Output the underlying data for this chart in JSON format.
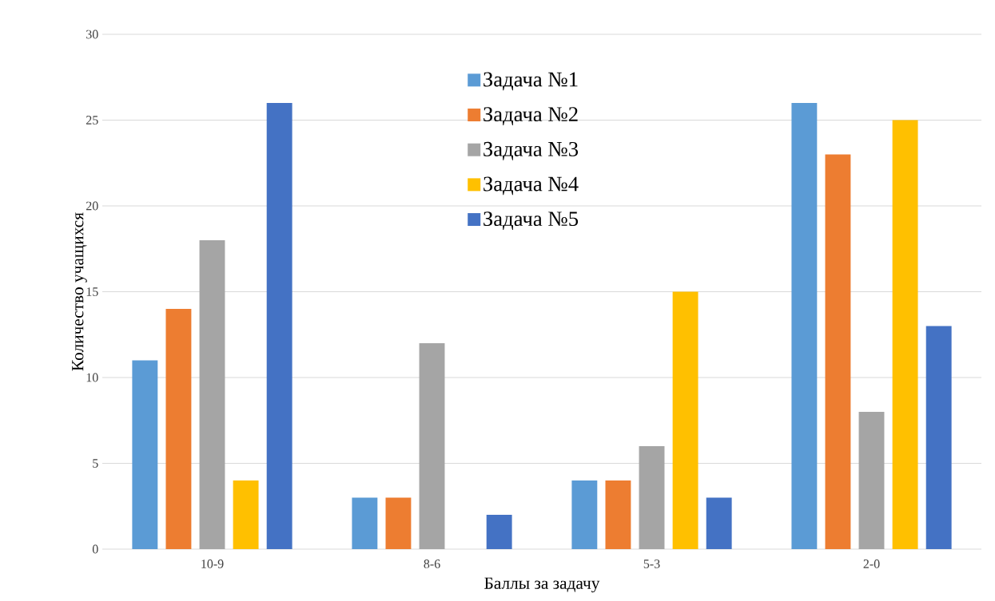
{
  "chart_data": {
    "type": "bar",
    "xlabel": "Баллы за задачу",
    "ylabel": "Количество учащихся",
    "categories": [
      "10-9",
      "8-6",
      "5-3",
      "2-0"
    ],
    "series": [
      {
        "name": "Задача №1",
        "color": "#5b9bd5",
        "values": [
          11,
          3,
          4,
          26
        ]
      },
      {
        "name": "Задача №2",
        "color": "#ed7d31",
        "values": [
          14,
          3,
          4,
          23
        ]
      },
      {
        "name": "Задача №3",
        "color": "#a5a5a5",
        "values": [
          18,
          12,
          6,
          8
        ]
      },
      {
        "name": "Задача №4",
        "color": "#ffc000",
        "values": [
          4,
          0,
          15,
          25
        ]
      },
      {
        "name": "Задача №5",
        "color": "#4472c4",
        "values": [
          26,
          2,
          3,
          13
        ]
      }
    ],
    "ylim": [
      0,
      30
    ],
    "yticks": [
      0,
      5,
      10,
      15,
      20,
      25,
      30
    ],
    "grid": "y",
    "legend": "top"
  }
}
